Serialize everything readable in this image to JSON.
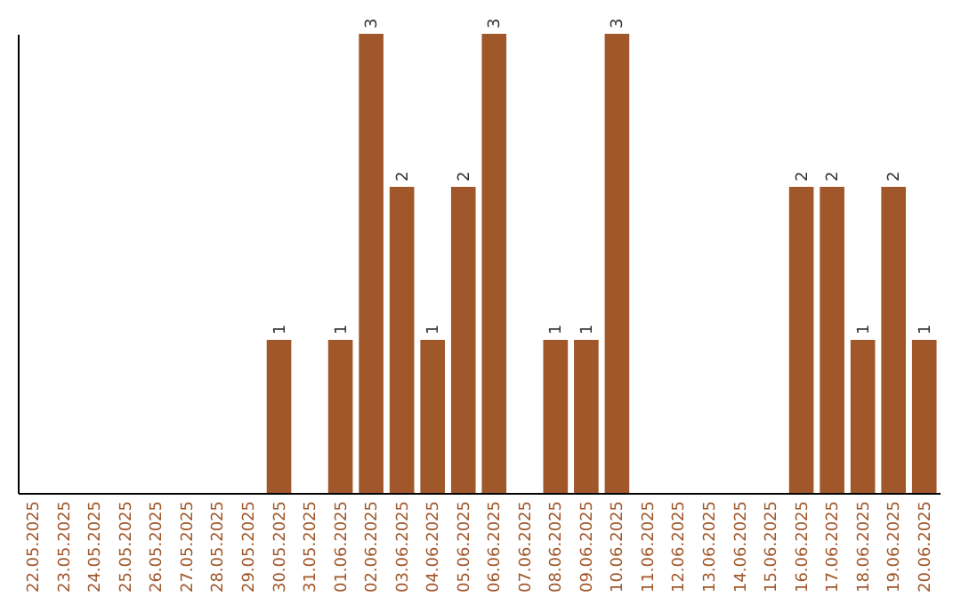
{
  "chart_data": {
    "type": "bar",
    "categories": [
      "22.05.2025",
      "23.05.2025",
      "24.05.2025",
      "25.05.2025",
      "26.05.2025",
      "27.05.2025",
      "28.05.2025",
      "29.05.2025",
      "30.05.2025",
      "31.05.2025",
      "01.06.2025",
      "02.06.2025",
      "03.06.2025",
      "04.06.2025",
      "05.06.2025",
      "06.06.2025",
      "07.06.2025",
      "08.06.2025",
      "09.06.2025",
      "10.06.2025",
      "11.06.2025",
      "12.06.2025",
      "13.06.2025",
      "14.06.2025",
      "15.06.2025",
      "16.06.2025",
      "17.06.2025",
      "18.06.2025",
      "19.06.2025",
      "20.06.2025"
    ],
    "values": [
      0,
      0,
      0,
      0,
      0,
      0,
      0,
      0,
      1,
      0,
      1,
      3,
      2,
      1,
      2,
      3,
      0,
      1,
      1,
      3,
      0,
      0,
      0,
      0,
      0,
      2,
      2,
      1,
      2,
      1
    ],
    "value_labels": [
      null,
      null,
      null,
      null,
      null,
      null,
      null,
      null,
      "1",
      null,
      "1",
      "3",
      "2",
      "1",
      "2",
      "3",
      null,
      "1",
      "1",
      "3",
      null,
      null,
      null,
      null,
      null,
      "2",
      "2",
      "1",
      "2",
      "1"
    ],
    "color": "#a0572a",
    "ylim": [
      0,
      3.0
    ],
    "tick_labels": "x",
    "grid": false
  }
}
